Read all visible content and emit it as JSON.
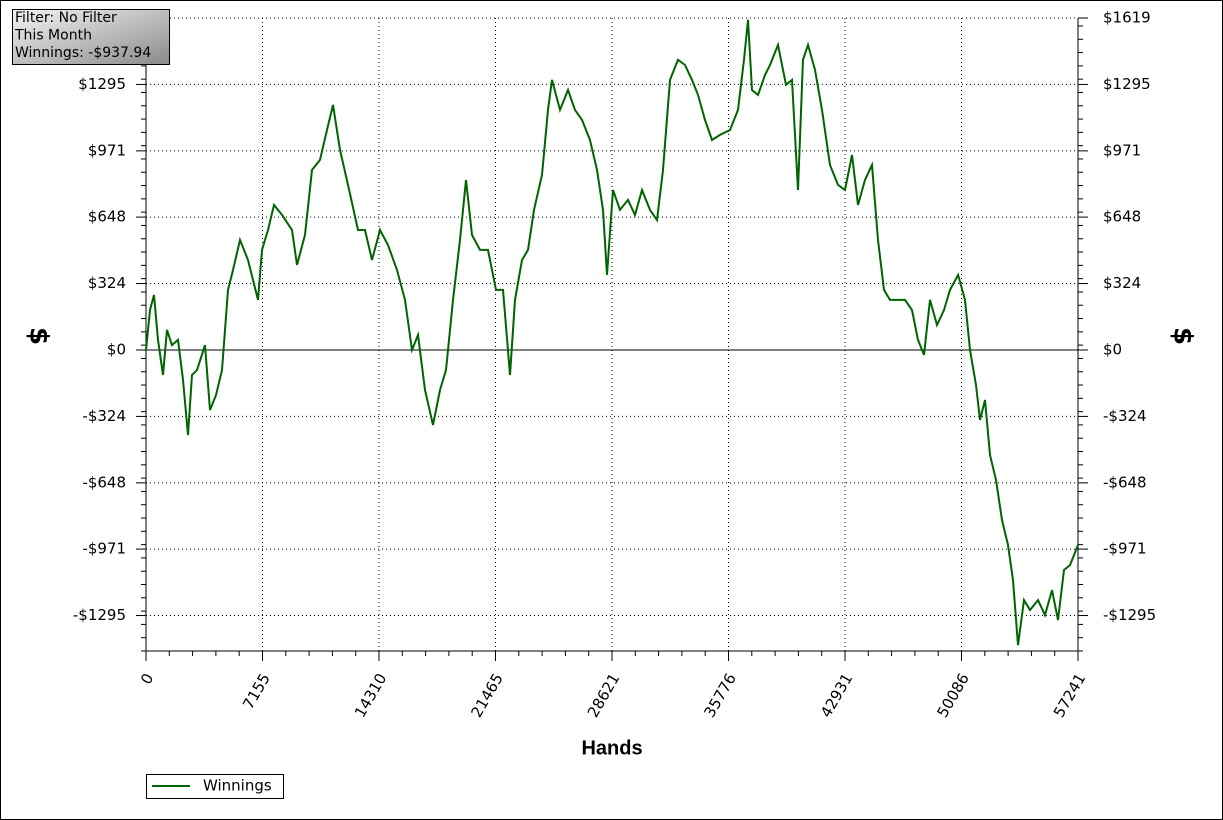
{
  "chart_data": {
    "type": "line",
    "info": [
      "Filter: No Filter",
      "This Month",
      "Winnings: -$937.94"
    ],
    "x_label": "Hands",
    "y_label": "$",
    "y2_label": "$",
    "xlim": [
      0,
      57241
    ],
    "xticks": [
      0,
      7155,
      14310,
      21465,
      28621,
      35776,
      42931,
      50086,
      57241
    ],
    "ylim": [
      -1468,
      1619
    ],
    "yticks": [
      {
        "value": -1295,
        "label": "-$1295"
      },
      {
        "value": -971,
        "label": "-$971"
      },
      {
        "value": -648,
        "label": "-$648"
      },
      {
        "value": -324,
        "label": "-$324"
      },
      {
        "value": 0,
        "label": "$0"
      },
      {
        "value": 324,
        "label": "$324"
      },
      {
        "value": 648,
        "label": "$648"
      },
      {
        "value": 971,
        "label": "$971"
      },
      {
        "value": 1295,
        "label": "$1295"
      },
      {
        "value": 1619,
        "label": "$1619"
      }
    ],
    "grid": true,
    "legend": "bottom-left",
    "x": [
      0,
      246,
      491,
      737,
      1044,
      1290,
      1597,
      1965,
      2273,
      2580,
      2825,
      3132,
      3624,
      3931,
      4299,
      4668,
      5036,
      5343,
      5773,
      6265,
      6879,
      7125,
      7493,
      7862,
      8353,
      8967,
      9274,
      9766,
      10196,
      10687,
      11117,
      11486,
      11915,
      12407,
      13021,
      13451,
      13881,
      14372,
      14864,
      15416,
      15908,
      16338,
      16706,
      17136,
      17628,
      18057,
      18426,
      18856,
      19286,
      19654,
      20023,
      20514,
      21006,
      21497,
      21927,
      22357,
      22664,
      23094,
      23462,
      23831,
      24322,
      24691,
      24937,
      25428,
      25920,
      26349,
      26779,
      27270,
      27700,
      28069,
      28315,
      28683,
      29113,
      29605,
      30034,
      30464,
      30956,
      31386,
      31754,
      32184,
      32675,
      33105,
      33535,
      33904,
      34334,
      34763,
      35255,
      35869,
      36360,
      36729,
      36975,
      37220,
      37589,
      38019,
      38326,
      38817,
      39309,
      39677,
      40046,
      40353,
      40660,
      41090,
      41520,
      42011,
      42503,
      42933,
      43363,
      43731,
      44161,
      44591,
      44959,
      45328,
      45696,
      46188,
      46618,
      47048,
      47416,
      47785,
      48153,
      48583,
      49013,
      49382,
      49880,
      50303,
      50610,
      50979,
      51224,
      51531,
      51838,
      52207,
      52576,
      52944,
      53251,
      53558,
      53927,
      54295,
      54787,
      55217,
      55647,
      56015,
      56384,
      56752,
      57241
    ],
    "series": [
      {
        "name": "Winnings",
        "color": "#006400",
        "values": [
          0,
          195,
          268,
          49,
          -122,
          98,
          24,
          49,
          -146,
          -415,
          -122,
          -98,
          24,
          -293,
          -220,
          -98,
          293,
          390,
          537,
          439,
          244,
          488,
          585,
          707,
          659,
          585,
          415,
          561,
          878,
          927,
          1073,
          1195,
          976,
          805,
          585,
          585,
          439,
          585,
          512,
          390,
          244,
          0,
          73,
          -195,
          -366,
          -195,
          -98,
          244,
          537,
          829,
          561,
          488,
          488,
          293,
          293,
          -122,
          244,
          439,
          488,
          683,
          854,
          1171,
          1317,
          1171,
          1268,
          1171,
          1122,
          1024,
          878,
          683,
          366,
          780,
          683,
          732,
          659,
          780,
          683,
          634,
          878,
          1317,
          1415,
          1390,
          1317,
          1244,
          1122,
          1024,
          1049,
          1073,
          1171,
          1415,
          1610,
          1268,
          1244,
          1341,
          1390,
          1488,
          1293,
          1317,
          780,
          1415,
          1488,
          1366,
          1171,
          902,
          805,
          780,
          951,
          707,
          829,
          902,
          537,
          293,
          244,
          244,
          244,
          195,
          49,
          -24,
          244,
          122,
          195,
          293,
          366,
          244,
          0,
          -171,
          -341,
          -244,
          -512,
          -634,
          -829,
          -951,
          -1122,
          -1439,
          -1220,
          -1268,
          -1220,
          -1293,
          -1171,
          -1317,
          -1073,
          -1049,
          -951
        ]
      }
    ]
  }
}
